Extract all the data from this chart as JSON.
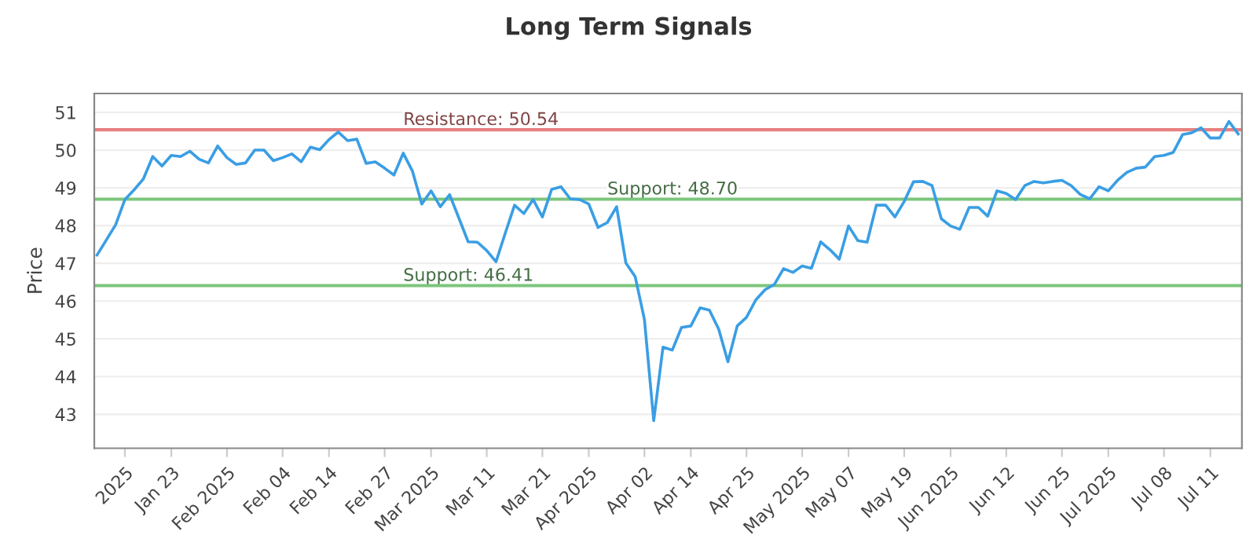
{
  "chart_data": {
    "type": "line",
    "title": "Long Term Signals",
    "ylabel": "Price",
    "ylim": [
      42.1,
      51.5
    ],
    "categories": [
      null,
      null,
      null,
      "2025",
      null,
      null,
      null,
      null,
      "Jan 23",
      null,
      null,
      null,
      null,
      null,
      "Feb 2025",
      null,
      null,
      null,
      null,
      null,
      "Feb 04",
      null,
      null,
      null,
      null,
      "Feb 14",
      null,
      null,
      null,
      null,
      null,
      "Feb 27",
      null,
      null,
      null,
      null,
      "Mar 2025",
      null,
      null,
      null,
      null,
      null,
      "Mar 11",
      null,
      null,
      null,
      null,
      null,
      "Mar 21",
      null,
      null,
      null,
      null,
      "Apr 2025",
      null,
      null,
      null,
      null,
      null,
      "Apr 02",
      null,
      null,
      null,
      null,
      "Apr 14",
      null,
      null,
      null,
      null,
      null,
      "Apr 25",
      null,
      null,
      null,
      null,
      null,
      "May 2025",
      null,
      null,
      null,
      null,
      "May 07",
      null,
      null,
      null,
      null,
      null,
      "May 19",
      null,
      null,
      null,
      null,
      "Jun 2025",
      null,
      null,
      null,
      null,
      null,
      "Jun 12",
      null,
      null,
      null,
      null,
      null,
      "Jun 25",
      null,
      null,
      null,
      null,
      "Jul 2025",
      null,
      null,
      null,
      null,
      null,
      "Jul 08",
      null,
      null,
      null,
      null,
      "Jul 11",
      null,
      null,
      null
    ],
    "yticks": [
      43,
      44,
      45,
      46,
      47,
      48,
      49,
      50,
      51
    ],
    "grid": "y",
    "marker": "none",
    "line_style": "solid",
    "series": [
      {
        "color": "#3a9ee4",
        "values": [
          47.22,
          47.62,
          48.02,
          48.69,
          48.95,
          49.24,
          49.83,
          49.58,
          49.86,
          49.83,
          49.97,
          49.76,
          49.66,
          50.11,
          49.8,
          49.62,
          49.66,
          50.0,
          50.0,
          49.72,
          49.8,
          49.9,
          49.69,
          50.08,
          50.01,
          50.28,
          50.48,
          50.25,
          50.29,
          49.65,
          49.69,
          49.52,
          49.34,
          49.92,
          49.44,
          48.57,
          48.92,
          48.5,
          48.82,
          48.2,
          47.57,
          47.56,
          47.34,
          47.04,
          47.8,
          48.54,
          48.32,
          48.69,
          48.23,
          48.96,
          49.03,
          48.71,
          48.69,
          48.57,
          47.95,
          48.08,
          48.5,
          47.01,
          46.65,
          45.51,
          42.83,
          44.78,
          44.7,
          45.3,
          45.34,
          45.82,
          45.76,
          45.26,
          44.39,
          45.34,
          45.57,
          46.03,
          46.3,
          46.44,
          46.86,
          46.76,
          46.93,
          46.87,
          47.57,
          47.36,
          47.11,
          47.99,
          47.6,
          47.56,
          48.54,
          48.54,
          48.23,
          48.64,
          49.16,
          49.17,
          49.06,
          48.18,
          47.99,
          47.9,
          48.48,
          48.48,
          48.25,
          48.92,
          48.85,
          48.69,
          49.06,
          49.17,
          49.13,
          49.17,
          49.2,
          49.06,
          48.82,
          48.71,
          49.03,
          48.92,
          49.2,
          49.41,
          49.52,
          49.55,
          49.83,
          49.86,
          49.94,
          50.41,
          50.46,
          50.59,
          50.32,
          50.32,
          50.76,
          50.43
        ]
      }
    ],
    "ref_lines": [
      {
        "axis": "y",
        "value": 50.54,
        "label": "Resistance: 50.54",
        "color": "#e88080"
      },
      {
        "axis": "y",
        "value": 48.7,
        "label": "Support: 48.70",
        "color": "#7cc67c"
      },
      {
        "axis": "y",
        "value": 46.41,
        "label": "Support: 46.41",
        "color": "#7cc67c"
      }
    ]
  }
}
